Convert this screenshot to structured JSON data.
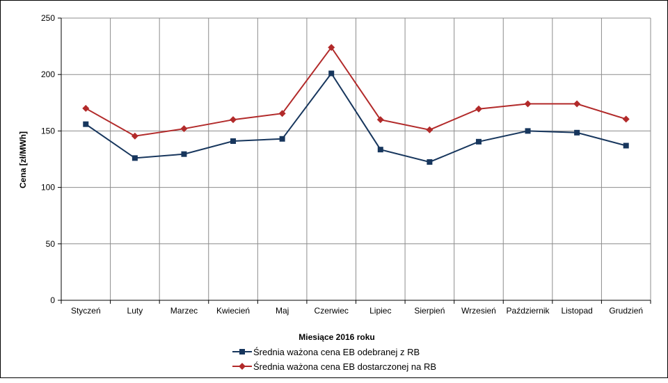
{
  "chart_data": {
    "type": "line",
    "categories": [
      "Styczeń",
      "Luty",
      "Marzec",
      "Kwiecień",
      "Maj",
      "Czerwiec",
      "Lipiec",
      "Sierpień",
      "Wrzesień",
      "Październik",
      "Listopad",
      "Grudzień"
    ],
    "series": [
      {
        "name": "Średnia ważona cena EB odebranej z RB",
        "color": "#17365d",
        "marker": "square",
        "values": [
          156,
          126,
          129.5,
          141,
          143,
          201,
          133.5,
          122.5,
          140.5,
          150,
          148.5,
          137
        ]
      },
      {
        "name": "Średnia ważona cena EB dostarczonej na RB",
        "color": "#b22a2a",
        "marker": "diamond",
        "values": [
          170,
          145.5,
          152,
          160,
          165.5,
          224,
          160,
          151,
          169.5,
          174,
          174,
          160.5
        ]
      }
    ],
    "title": "",
    "xlabel": "Miesiące 2016  roku",
    "ylabel": "Cena [zł/MWh]",
    "ylim": [
      0,
      250
    ],
    "yticks": [
      0,
      50,
      100,
      150,
      200,
      250
    ],
    "grid": true,
    "legend_position": "bottom"
  }
}
